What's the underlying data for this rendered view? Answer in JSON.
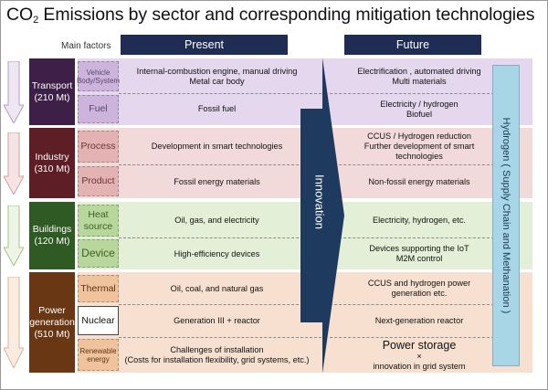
{
  "title": {
    "prefix": "CO",
    "sub": "2",
    "rest": " Emissions by sector and corresponding mitigation technologies"
  },
  "main_factors_label": "Main factors",
  "headers": {
    "present": "Present",
    "future": "Future"
  },
  "innovation_label": "Innovation",
  "hydrogen_label": "Hydrogen ( Supply Chain and Methanation )",
  "sectors": [
    {
      "name": "Transport",
      "amount": "(210 Mt)",
      "rows": [
        {
          "factor": "Vehicle Body/System",
          "present": [
            "Internal-combustion engine, manual driving",
            "Metal car body"
          ],
          "future": [
            "Electrification , automated driving",
            "Multi materials"
          ]
        },
        {
          "factor": "Fuel",
          "present": [
            "Fossil fuel"
          ],
          "future": [
            "Electricity / hydrogen",
            "Biofuel"
          ]
        }
      ]
    },
    {
      "name": "Industry",
      "amount": "(310 Mt)",
      "rows": [
        {
          "factor": "Process",
          "present": [
            "Development in smart technologies"
          ],
          "future": [
            "CCUS / Hydrogen reduction",
            "Further development of smart",
            "technologies"
          ]
        },
        {
          "factor": "Product",
          "present": [
            "Fossil energy materials"
          ],
          "future": [
            "Non-fossil energy materials"
          ]
        }
      ]
    },
    {
      "name": "Buildings",
      "amount": "(120 Mt)",
      "rows": [
        {
          "factor": "Heat source",
          "present": [
            "Oil, gas, and electricity"
          ],
          "future": [
            "Electricity, hydrogen, etc."
          ]
        },
        {
          "factor": "Device",
          "present": [
            "High-efficiency devices"
          ],
          "future": [
            "Devices supporting the IoT",
            "M2M control"
          ]
        }
      ]
    },
    {
      "name": "Power generation",
      "amount": "(510 Mt)",
      "rows": [
        {
          "factor": "Thermal",
          "present": [
            "Oil, coal, and natural gas"
          ],
          "future": [
            "CCUS and hydrogen power",
            "generation etc."
          ]
        },
        {
          "factor": "Nuclear",
          "present": [
            "Generation III + reactor"
          ],
          "future": [
            "Next-generation reactor"
          ]
        },
        {
          "factor": "Renewable energy",
          "present": [
            "Challenges of installation",
            "(Costs for installation flexibility, grid systems, etc.)"
          ],
          "future": [
            "Power storage",
            "×",
            "innovation in grid system"
          ]
        }
      ]
    }
  ],
  "colors": {
    "header": "#1f2c54",
    "innovation_arrow": "#1f3a5f",
    "hydrogen_bar": "#a8d6e6",
    "transport_band": "#e4d7ee",
    "transport_sector": "#3d1f47",
    "transport_factor": "#cdb4dd",
    "industry_band": "#f2dada",
    "industry_sector": "#5e1e26",
    "industry_factor": "#e3b3b3",
    "buildings_band": "#e3efd6",
    "buildings_sector": "#2f5a23",
    "buildings_factor": "#b8d79d",
    "power_band": "#f7e0d0",
    "power_sector": "#6a3714",
    "power_factor": "#f0c39c"
  }
}
